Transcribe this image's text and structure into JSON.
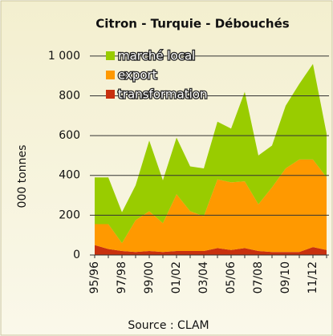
{
  "chart_data": {
    "type": "stacked_area",
    "title": "Citron - Turquie - Débouchés",
    "y_label": "000 tonnes",
    "source": "Source : CLAM",
    "categories": [
      "95/96",
      null,
      "97/98",
      null,
      "99/00",
      null,
      "01/02",
      null,
      "03/04",
      null,
      "05/06",
      null,
      "07/08",
      null,
      "09/10",
      null,
      "11/12",
      null
    ],
    "series": [
      {
        "name": "transformation",
        "color": "#c8300e",
        "values": [
          50,
          30,
          20,
          15,
          20,
          15,
          20,
          20,
          20,
          35,
          25,
          35,
          20,
          15,
          15,
          15,
          40,
          25
        ]
      },
      {
        "name": "export",
        "color": "#ff9900",
        "values": [
          105,
          125,
          40,
          160,
          200,
          145,
          285,
          200,
          175,
          345,
          340,
          335,
          235,
          325,
          420,
          465,
          440,
          365
        ]
      },
      {
        "name": "marché local",
        "color": "#99cc00",
        "values": [
          235,
          235,
          155,
          175,
          355,
          215,
          285,
          225,
          240,
          290,
          270,
          450,
          245,
          210,
          315,
          380,
          480,
          220
        ]
      }
    ],
    "ylim": [
      0,
      1100
    ],
    "yticks": [
      0,
      200,
      400,
      600,
      800,
      {
        "value": 1000,
        "label": "1 000"
      }
    ],
    "grid": true,
    "legend": "top-left"
  }
}
